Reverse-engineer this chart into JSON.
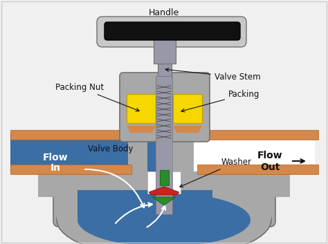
{
  "bg_color": "#f0f0f0",
  "gray": "#a8a8a8",
  "dark_gray": "#707070",
  "light_gray": "#c8c8c8",
  "blue": "#3a6ea5",
  "yellow": "#f5d800",
  "orange": "#d4884a",
  "green": "#2a8c2a",
  "red": "#cc2222",
  "black": "#111111",
  "white": "#ffffff",
  "stem_color": "#9898a8",
  "labels": {
    "handle": "Handle",
    "valve_stem": "Valve Stem",
    "packing_nut": "Packing Nut",
    "packing": "Packing",
    "valve_body": "Valve Body",
    "washer": "Washer",
    "flow_in_1": "Flow",
    "flow_in_2": "In",
    "flow_out_1": "Flow",
    "flow_out_2": "Out"
  }
}
